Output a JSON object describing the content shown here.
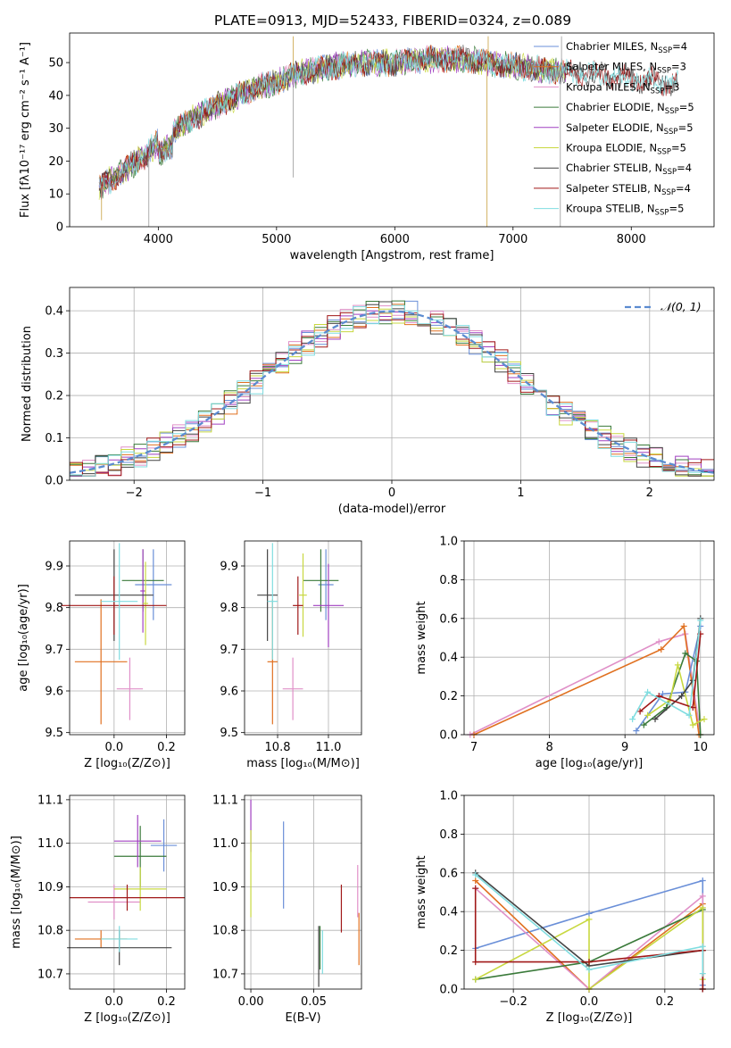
{
  "colors": {
    "chab_miles": "#6a8fd8",
    "salp_miles": "#e07020",
    "krou_miles": "#e090c8",
    "chab_elodie": "#3a7a3a",
    "salp_elodie": "#a040c0",
    "krou_elodie": "#c8d840",
    "chab_stelib": "#444444",
    "salp_stelib": "#a01818",
    "krou_stelib": "#80dde0",
    "gauss": "#5b8bd0",
    "grid": "#b0b0b0"
  },
  "chart_data": [
    {
      "type": "line",
      "title": "PLATE=0913, MJD=52433, FIBERID=0324, z=0.089",
      "xlabel": "wavelength [Angstrom, rest frame]",
      "ylabel": "Flux [fλ10⁻¹⁷ erg cm⁻² s⁻¹ A⁻¹]",
      "xlim": [
        3250,
        8700
      ],
      "ylim": [
        0,
        59
      ],
      "xticks": [
        "4000",
        "5000",
        "6000",
        "7000",
        "8000"
      ],
      "yticks": [
        "0",
        "10",
        "20",
        "30",
        "40",
        "50"
      ],
      "continuum": [
        [
          3500,
          12
        ],
        [
          3700,
          17
        ],
        [
          3900,
          22
        ],
        [
          4000,
          26
        ],
        [
          4200,
          31
        ],
        [
          4500,
          37
        ],
        [
          4800,
          42
        ],
        [
          5000,
          44
        ],
        [
          5200,
          47
        ],
        [
          5500,
          49
        ],
        [
          5800,
          50
        ],
        [
          6000,
          50
        ],
        [
          6300,
          51
        ],
        [
          6600,
          51
        ],
        [
          6800,
          50
        ],
        [
          7000,
          49
        ],
        [
          7200,
          48
        ],
        [
          7500,
          47
        ],
        [
          7800,
          46
        ],
        [
          8000,
          45
        ],
        [
          8300,
          44
        ]
      ],
      "spikes": [
        [
          5140,
          58
        ],
        [
          5140,
          15
        ],
        [
          6780,
          0
        ],
        [
          7400,
          0
        ],
        [
          3520,
          2
        ],
        [
          3920,
          0
        ],
        [
          6790,
          58
        ],
        [
          7410,
          58
        ]
      ],
      "legend": [
        {
          "label": "Chabrier MILES, N",
          "sub": "SSP",
          "val": "=4"
        },
        {
          "label": "Salpeter MILES, N",
          "sub": "SSP",
          "val": "=3"
        },
        {
          "label": "Kroupa MILES, N",
          "sub": "SSP",
          "val": "=3"
        },
        {
          "label": "Chabrier ELODIE, N",
          "sub": "SSP",
          "val": "=5"
        },
        {
          "label": "Salpeter ELODIE, N",
          "sub": "SSP",
          "val": "=5"
        },
        {
          "label": "Kroupa ELODIE, N",
          "sub": "SSP",
          "val": "=5"
        },
        {
          "label": "Chabrier STELIB, N",
          "sub": "SSP",
          "val": "=4"
        },
        {
          "label": "Salpeter STELIB, N",
          "sub": "SSP",
          "val": "=4"
        },
        {
          "label": "Kroupa STELIB, N",
          "sub": "SSP",
          "val": "=5"
        }
      ]
    },
    {
      "type": "histogram",
      "xlabel": "(data-model)/error",
      "ylabel": "Normed distribution",
      "xlim": [
        -2.5,
        2.5
      ],
      "ylim": [
        0,
        0.455
      ],
      "xticks": [
        "−2",
        "−1",
        "0",
        "1",
        "2"
      ],
      "yticks": [
        "0.0",
        "0.1",
        "0.2",
        "0.3",
        "0.4"
      ],
      "legend_label": "𝒩(0, 1)",
      "legend_loc": "top-right"
    },
    {
      "type": "scatter",
      "xlabel": "Z [log₁₀(Z/Z⊙)]",
      "ylabel": "age  [log₁₀(age/yr)]",
      "xlim": [
        -0.17,
        0.27
      ],
      "ylim": [
        9.495,
        9.96
      ],
      "xticks": [
        "0.0",
        "0.2"
      ],
      "yticks": [
        "9.5",
        "9.6",
        "9.7",
        "9.8",
        "9.9"
      ],
      "points": [
        {
          "s": "chab_miles",
          "x": 0.15,
          "y": 9.855,
          "dx": 0.07,
          "dy": 0.085
        },
        {
          "s": "salp_miles",
          "x": -0.05,
          "y": 9.67,
          "dx": 0.1,
          "dy": 0.15
        },
        {
          "s": "krou_miles",
          "x": 0.06,
          "y": 9.605,
          "dx": 0.05,
          "dy": 0.075
        },
        {
          "s": "chab_elodie",
          "x": 0.11,
          "y": 9.865,
          "dx": 0.08,
          "dy": 0.075
        },
        {
          "s": "salp_elodie",
          "x": 0.11,
          "y": 9.84,
          "dx": 0.01,
          "dy": 0.1
        },
        {
          "s": "krou_elodie",
          "x": 0.12,
          "y": 9.81,
          "dx": 0.01,
          "dy": 0.1
        },
        {
          "s": "chab_stelib",
          "x": 0.0,
          "y": 9.83,
          "dx": 0.15,
          "dy": 0.11
        },
        {
          "s": "salp_stelib",
          "x": 0.0,
          "y": 9.805,
          "dx": 0.2,
          "dy": 0.07
        },
        {
          "s": "krou_stelib",
          "x": 0.02,
          "y": 9.815,
          "dx": 0.07,
          "dy": 0.14
        }
      ]
    },
    {
      "type": "scatter",
      "xlabel": "mass [log₁₀(M/M⊙)]",
      "ylabel": "",
      "xlim": [
        10.67,
        11.13
      ],
      "ylim": [
        9.495,
        9.96
      ],
      "xticks": [
        "10.8",
        "11.0"
      ],
      "yticks": [
        "9.5",
        "9.6",
        "9.7",
        "9.8",
        "9.9"
      ],
      "points": [
        {
          "s": "chab_miles",
          "x": 10.99,
          "y": 9.855,
          "dx": 0.03,
          "dy": 0.085
        },
        {
          "s": "salp_miles",
          "x": 10.78,
          "y": 9.67,
          "dx": 0.02,
          "dy": 0.15
        },
        {
          "s": "krou_miles",
          "x": 10.86,
          "y": 9.605,
          "dx": 0.04,
          "dy": 0.075
        },
        {
          "s": "chab_elodie",
          "x": 10.97,
          "y": 9.865,
          "dx": 0.07,
          "dy": 0.075
        },
        {
          "s": "salp_elodie",
          "x": 11.0,
          "y": 9.805,
          "dx": 0.06,
          "dy": 0.1
        },
        {
          "s": "krou_elodie",
          "x": 10.9,
          "y": 9.83,
          "dx": 0.015,
          "dy": 0.1
        },
        {
          "s": "chab_stelib",
          "x": 10.76,
          "y": 9.83,
          "dx": 0.04,
          "dy": 0.11
        },
        {
          "s": "salp_stelib",
          "x": 10.88,
          "y": 9.805,
          "dx": 0.02,
          "dy": 0.07
        },
        {
          "s": "krou_stelib",
          "x": 10.78,
          "y": 9.815,
          "dx": 0.02,
          "dy": 0.14
        }
      ]
    },
    {
      "type": "line",
      "xlabel": "age  [log₁₀(age/yr)]",
      "ylabel": "mass weight",
      "xlim": [
        6.87,
        10.18
      ],
      "ylim": [
        0,
        1
      ],
      "xticks": [
        "7",
        "8",
        "9",
        "10"
      ],
      "yticks": [
        "0.0",
        "0.2",
        "0.4",
        "0.6",
        "0.8",
        "1.0"
      ],
      "series": [
        {
          "s": "krou_miles",
          "x": [
            6.95,
            9.45,
            9.8,
            10.0
          ],
          "y": [
            0.0,
            0.48,
            0.52,
            0.0
          ]
        },
        {
          "s": "salp_miles",
          "x": [
            7.0,
            9.48,
            9.78,
            9.98
          ],
          "y": [
            0.0,
            0.44,
            0.56,
            0.0
          ]
        },
        {
          "s": "chab_miles",
          "x": [
            9.15,
            9.5,
            9.8,
            10.0
          ],
          "y": [
            0.02,
            0.21,
            0.22,
            0.56
          ]
        },
        {
          "s": "chab_elodie",
          "x": [
            9.25,
            9.55,
            9.8,
            9.95,
            10.0
          ],
          "y": [
            0.05,
            0.14,
            0.42,
            0.38,
            0.0
          ]
        },
        {
          "s": "krou_elodie",
          "x": [
            9.3,
            9.6,
            9.7,
            9.9,
            10.05
          ],
          "y": [
            0.1,
            0.18,
            0.36,
            0.05,
            0.08
          ]
        },
        {
          "s": "chab_stelib",
          "x": [
            9.4,
            9.75,
            9.9,
            10.0
          ],
          "y": [
            0.08,
            0.2,
            0.28,
            0.6
          ]
        },
        {
          "s": "salp_stelib",
          "x": [
            9.2,
            9.45,
            9.9,
            10.0
          ],
          "y": [
            0.12,
            0.2,
            0.14,
            0.52
          ]
        },
        {
          "s": "krou_stelib",
          "x": [
            9.1,
            9.3,
            9.85,
            10.0
          ],
          "y": [
            0.08,
            0.22,
            0.1,
            0.59
          ]
        }
      ]
    },
    {
      "type": "scatter",
      "xlabel": "Z [log₁₀(Z/Z⊙)]",
      "ylabel": "mass [log₁₀(M/M⊙)]",
      "xlim": [
        -0.17,
        0.27
      ],
      "ylim": [
        10.665,
        11.11
      ],
      "xticks": [
        "0.0",
        "0.2"
      ],
      "yticks": [
        "10.7",
        "10.8",
        "10.9",
        "11.0",
        "11.1"
      ],
      "points": [
        {
          "s": "chab_miles",
          "x": 0.19,
          "y": 10.995,
          "dx": 0.05,
          "dy": 0.06
        },
        {
          "s": "salp_miles",
          "x": -0.05,
          "y": 10.78,
          "dx": 0.1,
          "dy": 0.02
        },
        {
          "s": "krou_miles",
          "x": 0.0,
          "y": 10.865,
          "dx": 0.1,
          "dy": 0.04
        },
        {
          "s": "chab_elodie",
          "x": 0.1,
          "y": 10.97,
          "dx": 0.1,
          "dy": 0.07
        },
        {
          "s": "salp_elodie",
          "x": 0.09,
          "y": 11.005,
          "dx": 0.09,
          "dy": 0.06
        },
        {
          "s": "krou_elodie",
          "x": 0.1,
          "y": 10.895,
          "dx": 0.1,
          "dy": 0.05
        },
        {
          "s": "chab_stelib",
          "x": 0.02,
          "y": 10.76,
          "dx": 0.2,
          "dy": 0.04
        },
        {
          "s": "salp_stelib",
          "x": 0.05,
          "y": 10.875,
          "dx": 0.22,
          "dy": 0.03
        },
        {
          "s": "krou_stelib",
          "x": 0.02,
          "y": 10.78,
          "dx": 0.07,
          "dy": 0.03
        }
      ]
    },
    {
      "type": "scatter",
      "xlabel": "E(B-V)",
      "ylabel": "",
      "xlim": [
        -0.005,
        0.088
      ],
      "ylim": [
        10.665,
        11.11
      ],
      "xticks": [
        "0.00",
        "0.05"
      ],
      "yticks": [
        "10.7",
        "10.8",
        "10.9",
        "11.0",
        "11.1"
      ],
      "points": [
        {
          "s": "chab_miles",
          "x": 0.026,
          "y": 10.95,
          "dx": 0,
          "dy": 0.1
        },
        {
          "s": "salp_miles",
          "x": 0.086,
          "y": 10.78,
          "dx": 0,
          "dy": 0.06
        },
        {
          "s": "krou_miles",
          "x": 0.085,
          "y": 10.89,
          "dx": 0,
          "dy": 0.06
        },
        {
          "s": "chab_elodie",
          "x": 0.055,
          "y": 10.76,
          "dx": 0,
          "dy": 0.05
        },
        {
          "s": "salp_elodie",
          "x": 0.0,
          "y": 11.04,
          "dx": 0,
          "dy": 0.06
        },
        {
          "s": "krou_elodie",
          "x": 0.0,
          "y": 10.93,
          "dx": 0,
          "dy": 0.1
        },
        {
          "s": "chab_stelib",
          "x": 0.054,
          "y": 10.74,
          "dx": 0,
          "dy": 0.07
        },
        {
          "s": "salp_stelib",
          "x": 0.072,
          "y": 10.85,
          "dx": 0,
          "dy": 0.055
        },
        {
          "s": "krou_stelib",
          "x": 0.057,
          "y": 10.75,
          "dx": 0,
          "dy": 0.05
        }
      ]
    },
    {
      "type": "line",
      "xlabel": "Z [log₁₀(Z/Z⊙)]",
      "ylabel": "mass weight",
      "xlim": [
        -0.33,
        0.33
      ],
      "ylim": [
        0,
        1
      ],
      "xticks": [
        "−0.2",
        "0.0",
        "0.2"
      ],
      "yticks": [
        "0.0",
        "0.2",
        "0.4",
        "0.6",
        "0.8",
        "1.0"
      ],
      "series": [
        {
          "s": "chab_miles",
          "x": [
            -0.3,
            0.0,
            0.3,
            0.3
          ],
          "y": [
            0.21,
            0.39,
            0.56,
            0.02
          ]
        },
        {
          "s": "salp_miles",
          "x": [
            -0.3,
            0.0,
            0.3,
            0.3
          ],
          "y": [
            0.56,
            0.0,
            0.44,
            0.0
          ]
        },
        {
          "s": "krou_miles",
          "x": [
            -0.3,
            0.0,
            0.3,
            0.3
          ],
          "y": [
            0.52,
            0.0,
            0.48,
            0.0
          ]
        },
        {
          "s": "chab_elodie",
          "x": [
            -0.3,
            0.0,
            0.3,
            0.3
          ],
          "y": [
            0.05,
            0.14,
            0.41,
            0.2
          ]
        },
        {
          "s": "krou_elodie",
          "x": [
            -0.3,
            0.0,
            0.0,
            0.3,
            0.3
          ],
          "y": [
            0.05,
            0.36,
            0.0,
            0.42,
            0.05
          ]
        },
        {
          "s": "chab_stelib",
          "x": [
            -0.3,
            0.0,
            0.3,
            0.3
          ],
          "y": [
            0.6,
            0.12,
            0.2,
            0.0
          ]
        },
        {
          "s": "salp_stelib",
          "x": [
            -0.3,
            -0.3,
            0.0,
            0.3,
            0.3
          ],
          "y": [
            0.52,
            0.14,
            0.14,
            0.2,
            0.0
          ]
        },
        {
          "s": "krou_stelib",
          "x": [
            -0.3,
            0.0,
            0.3,
            0.3
          ],
          "y": [
            0.59,
            0.1,
            0.22,
            0.08
          ]
        }
      ]
    }
  ]
}
